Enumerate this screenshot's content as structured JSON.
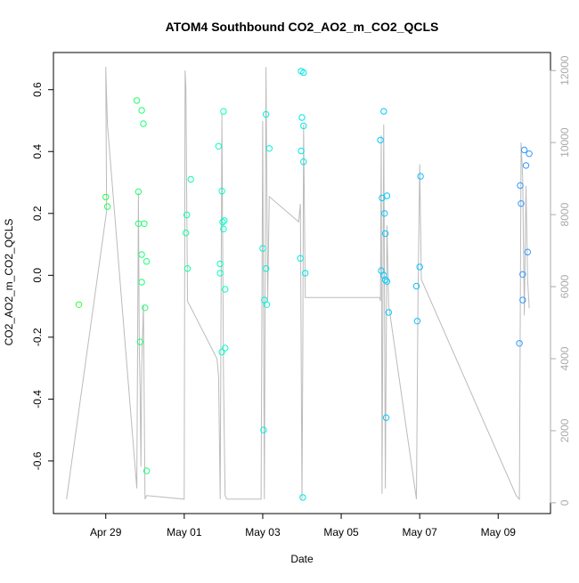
{
  "chart_data": {
    "type": "scatter",
    "title": "ATOM4 Southbound CO2_AO2_m_CO2_QCLS",
    "xlabel": "Date",
    "ylabel": "CO2_AO2_m_CO2_QCLS",
    "xlim": [
      "2016-04-27T16:00",
      "2016-05-10T08:00"
    ],
    "ylim": [
      -0.77,
      0.72
    ],
    "x_ticks": [
      {
        "date": "2016-04-29",
        "label": "Apr 29"
      },
      {
        "date": "2016-05-01",
        "label": "May 01"
      },
      {
        "date": "2016-05-03",
        "label": "May 03"
      },
      {
        "date": "2016-05-05",
        "label": "May 05"
      },
      {
        "date": "2016-05-07",
        "label": "May 07"
      },
      {
        "date": "2016-05-09",
        "label": "May 09"
      }
    ],
    "y_ticks": [
      -0.6,
      -0.4,
      -0.2,
      0.0,
      0.2,
      0.4,
      0.6
    ],
    "y_tick_labels": [
      "-0.6",
      "-0.4",
      "-0.2",
      "0.0",
      "0.2",
      "0.4",
      "0.6"
    ],
    "right_axis": {
      "lim": [
        -300,
        12500
      ],
      "ticks": [
        0,
        2000,
        4000,
        6000,
        8000,
        10000,
        12000
      ],
      "tick_labels": [
        "0",
        "2000",
        "4000",
        "6000",
        "8000",
        "10000",
        "12000"
      ],
      "color": "#aaaaaa"
    },
    "grid": false,
    "legend": "none",
    "color_ramp": [
      "#33ff33",
      "#00ffcc",
      "#00ccff",
      "#3399ff"
    ],
    "points": [
      {
        "x": "2016-04-28T07:30",
        "y": -0.095
      },
      {
        "x": "2016-04-29T00:00",
        "y": 0.253
      },
      {
        "x": "2016-04-29T01:00",
        "y": 0.222
      },
      {
        "x": "2016-04-29T19:00",
        "y": 0.565
      },
      {
        "x": "2016-04-29T20:00",
        "y": 0.27
      },
      {
        "x": "2016-04-29T20:00",
        "y": 0.167
      },
      {
        "x": "2016-04-29T21:00",
        "y": -0.215
      },
      {
        "x": "2016-04-29T22:00",
        "y": 0.533
      },
      {
        "x": "2016-04-29T22:00",
        "y": 0.067
      },
      {
        "x": "2016-04-29T22:00",
        "y": -0.022
      },
      {
        "x": "2016-04-29T23:00",
        "y": 0.49
      },
      {
        "x": "2016-04-29T23:30",
        "y": 0.167
      },
      {
        "x": "2016-04-30T00:00",
        "y": -0.105
      },
      {
        "x": "2016-04-30T01:00",
        "y": 0.045
      },
      {
        "x": "2016-04-30T01:00",
        "y": -0.632
      },
      {
        "x": "2016-05-01T01:00",
        "y": 0.137
      },
      {
        "x": "2016-05-01T01:30",
        "y": 0.195
      },
      {
        "x": "2016-05-01T02:00",
        "y": 0.022
      },
      {
        "x": "2016-05-01T04:00",
        "y": 0.31
      },
      {
        "x": "2016-05-01T21:00",
        "y": 0.417
      },
      {
        "x": "2016-05-01T22:00",
        "y": 0.037
      },
      {
        "x": "2016-05-01T22:00",
        "y": 0.007
      },
      {
        "x": "2016-05-01T23:00",
        "y": 0.272
      },
      {
        "x": "2016-05-01T23:00",
        "y": -0.248
      },
      {
        "x": "2016-05-01T23:30",
        "y": 0.172
      },
      {
        "x": "2016-05-02T00:00",
        "y": 0.53
      },
      {
        "x": "2016-05-02T00:00",
        "y": 0.15
      },
      {
        "x": "2016-05-02T00:30",
        "y": 0.177
      },
      {
        "x": "2016-05-02T01:00",
        "y": -0.045
      },
      {
        "x": "2016-05-02T01:00",
        "y": -0.235
      },
      {
        "x": "2016-05-03T00:00",
        "y": 0.087
      },
      {
        "x": "2016-05-03T00:30",
        "y": -0.5
      },
      {
        "x": "2016-05-03T01:00",
        "y": -0.08
      },
      {
        "x": "2016-05-03T02:00",
        "y": 0.52
      },
      {
        "x": "2016-05-03T02:00",
        "y": 0.022
      },
      {
        "x": "2016-05-03T02:30",
        "y": -0.095
      },
      {
        "x": "2016-05-03T04:00",
        "y": 0.41
      },
      {
        "x": "2016-05-03T23:00",
        "y": 0.055
      },
      {
        "x": "2016-05-03T23:30",
        "y": 0.66
      },
      {
        "x": "2016-05-03T23:30",
        "y": 0.402
      },
      {
        "x": "2016-05-04T00:00",
        "y": 0.51
      },
      {
        "x": "2016-05-04T00:30",
        "y": -0.718
      },
      {
        "x": "2016-05-04T01:00",
        "y": 0.655
      },
      {
        "x": "2016-05-04T01:00",
        "y": 0.483
      },
      {
        "x": "2016-05-04T01:00",
        "y": 0.367
      },
      {
        "x": "2016-05-04T02:00",
        "y": 0.007
      },
      {
        "x": "2016-05-06T00:00",
        "y": 0.437
      },
      {
        "x": "2016-05-06T00:30",
        "y": 0.015
      },
      {
        "x": "2016-05-06T01:00",
        "y": 0.25
      },
      {
        "x": "2016-05-06T02:00",
        "y": 0.0
      },
      {
        "x": "2016-05-06T02:00",
        "y": 0.53
      },
      {
        "x": "2016-05-06T02:30",
        "y": 0.2
      },
      {
        "x": "2016-05-06T03:00",
        "y": -0.015
      },
      {
        "x": "2016-05-06T03:00",
        "y": 0.135
      },
      {
        "x": "2016-05-06T03:30",
        "y": -0.46
      },
      {
        "x": "2016-05-06T04:00",
        "y": 0.257
      },
      {
        "x": "2016-05-06T04:00",
        "y": -0.02
      },
      {
        "x": "2016-05-06T05:00",
        "y": -0.12
      },
      {
        "x": "2016-05-06T22:00",
        "y": -0.035
      },
      {
        "x": "2016-05-06T22:30",
        "y": -0.148
      },
      {
        "x": "2016-05-07T00:00",
        "y": 0.027
      },
      {
        "x": "2016-05-07T00:30",
        "y": 0.32
      },
      {
        "x": "2016-05-09T13:00",
        "y": -0.22
      },
      {
        "x": "2016-05-09T13:30",
        "y": 0.29
      },
      {
        "x": "2016-05-09T14:00",
        "y": 0.232
      },
      {
        "x": "2016-05-09T15:00",
        "y": 0.003
      },
      {
        "x": "2016-05-09T15:00",
        "y": -0.08
      },
      {
        "x": "2016-05-09T16:00",
        "y": 0.405
      },
      {
        "x": "2016-05-09T17:00",
        "y": 0.355
      },
      {
        "x": "2016-05-09T18:00",
        "y": 0.075
      },
      {
        "x": "2016-05-09T19:00",
        "y": 0.393
      }
    ],
    "right_axis_series": {
      "color": "#bbbbbb",
      "x": [
        "2016-04-28T00:00",
        "2016-04-29T00:30",
        "2016-04-29T00:00",
        "2016-04-29T01:00",
        "2016-04-29T19:00",
        "2016-04-29T20:00",
        "2016-04-29T20:30",
        "2016-04-29T21:00",
        "2016-04-29T21:30",
        "2016-04-29T22:00",
        "2016-04-29T23:00",
        "2016-04-30T00:00",
        "2016-04-30T01:00",
        "2016-05-01T00:00",
        "2016-05-01T00:30",
        "2016-05-01T01:00",
        "2016-05-01T02:00",
        "2016-05-01T20:00",
        "2016-05-01T21:00",
        "2016-05-01T22:00",
        "2016-05-01T23:00",
        "2016-05-02T00:00",
        "2016-05-02T01:00",
        "2016-05-02T02:00",
        "2016-05-02T23:00",
        "2016-05-03T00:00",
        "2016-05-03T01:00",
        "2016-05-03T02:00",
        "2016-05-03T03:00",
        "2016-05-03T04:00",
        "2016-05-03T22:00",
        "2016-05-03T23:00",
        "2016-05-04T00:00",
        "2016-05-04T00:30",
        "2016-05-04T01:00",
        "2016-05-04T02:00",
        "2016-05-05T23:30",
        "2016-05-06T00:00",
        "2016-05-06T00:30",
        "2016-05-06T01:00",
        "2016-05-06T02:00",
        "2016-05-06T03:00",
        "2016-05-06T04:00",
        "2016-05-06T05:00",
        "2016-05-06T22:00",
        "2016-05-06T23:00",
        "2016-05-07T00:00",
        "2016-05-07T01:00",
        "2016-05-09T11:00",
        "2016-05-09T13:00",
        "2016-05-09T14:00",
        "2016-05-09T15:00",
        "2016-05-09T16:00",
        "2016-05-09T17:00",
        "2016-05-09T18:00",
        "2016-05-09T19:00"
      ],
      "y": [
        100,
        8100,
        12100,
        10500,
        400,
        8600,
        4200,
        3200,
        1000,
        3800,
        5500,
        100,
        200,
        100,
        12000,
        11500,
        5600,
        4000,
        3500,
        100,
        10800,
        3500,
        200,
        100,
        100,
        10600,
        100,
        12100,
        5600,
        8500,
        7800,
        8300,
        100,
        4000,
        10500,
        5700,
        5700,
        5600,
        10200,
        250,
        10500,
        400,
        7700,
        5500,
        100,
        5800,
        9400,
        6200,
        200,
        100,
        10000,
        9000,
        5200,
        8800,
        6200,
        5400
      ]
    }
  }
}
